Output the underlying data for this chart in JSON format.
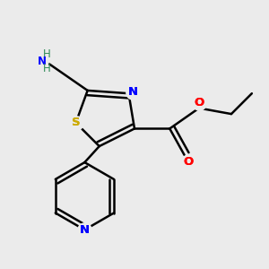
{
  "background_color": "#ebebeb",
  "atom_colors": {
    "C": "#000000",
    "H": "#2e8b57",
    "N": "#0000ff",
    "O": "#ff0000",
    "S": "#ccaa00"
  },
  "bond_color": "#000000",
  "bond_width": 1.8,
  "figsize": [
    3.0,
    3.0
  ],
  "dpi": 100,
  "xlim": [
    0.05,
    0.95
  ],
  "ylim": [
    0.08,
    0.92
  ]
}
